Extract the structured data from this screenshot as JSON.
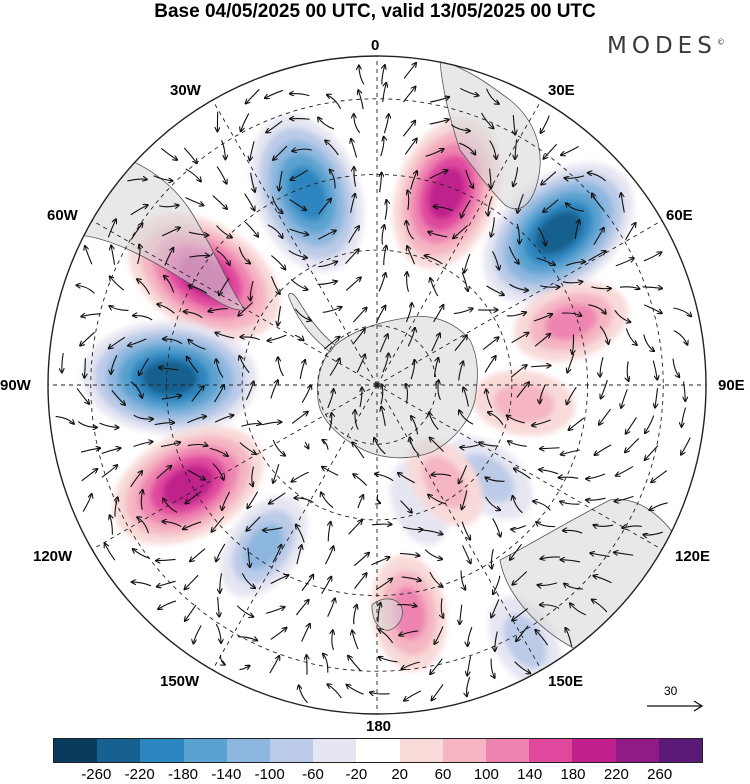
{
  "title": "Base 04/05/2025 00 UTC, valid 13/05/2025 00 UTC",
  "brand": "MODES",
  "brand_mark": "©",
  "longitude_labels": {
    "lon_0": "0",
    "lon_30e": "30E",
    "lon_60e": "60E",
    "lon_90e": "90E",
    "lon_120e": "120E",
    "lon_150e": "150E",
    "lon_180": "180",
    "lon_150w": "150W",
    "lon_120w": "120W",
    "lon_90w": "90W",
    "lon_60w": "60W",
    "lon_30w": "30W"
  },
  "reference_vector": "30",
  "colorbar": {
    "colors": [
      "#0a3b5c",
      "#16618f",
      "#2e86c0",
      "#5aa2d0",
      "#8db7df",
      "#bccbe8",
      "#e6e6f2",
      "#ffffff",
      "#f8dad8",
      "#f5b5c3",
      "#ee85b0",
      "#e0489e",
      "#c0208b",
      "#901a86",
      "#5c1a78"
    ],
    "ticks": [
      "-260",
      "-220",
      "-180",
      "-140",
      "-100",
      "-60",
      "-20",
      "20",
      "60",
      "100",
      "140",
      "180",
      "220",
      "260"
    ]
  },
  "anomaly_centers": [
    {
      "lon": -20,
      "lat_ring": 0.62,
      "value": -215
    },
    {
      "lon": 20,
      "lat_ring": 0.62,
      "value": 200
    },
    {
      "lon": 50,
      "lat_ring": 0.72,
      "value": -235
    },
    {
      "lon": -58,
      "lat_ring": 0.62,
      "value": 220
    },
    {
      "lon": 72,
      "lat_ring": 0.62,
      "value": 120
    },
    {
      "lon": -88,
      "lat_ring": 0.63,
      "value": -240
    },
    {
      "lon": 97,
      "lat_ring": 0.45,
      "value": 90
    },
    {
      "lon": -118,
      "lat_ring": 0.65,
      "value": 210
    },
    {
      "lon": 130,
      "lat_ring": 0.44,
      "value": -90
    },
    {
      "lon": -145,
      "lat_ring": 0.6,
      "value": -110
    },
    {
      "lon": 160,
      "lat_ring": 0.38,
      "value": -60
    },
    {
      "lon": 172,
      "lat_ring": 0.7,
      "value": 120
    },
    {
      "lon": 150,
      "lat_ring": 0.9,
      "value": -80
    },
    {
      "lon": 145,
      "lat_ring": 0.36,
      "value": 80
    }
  ]
}
